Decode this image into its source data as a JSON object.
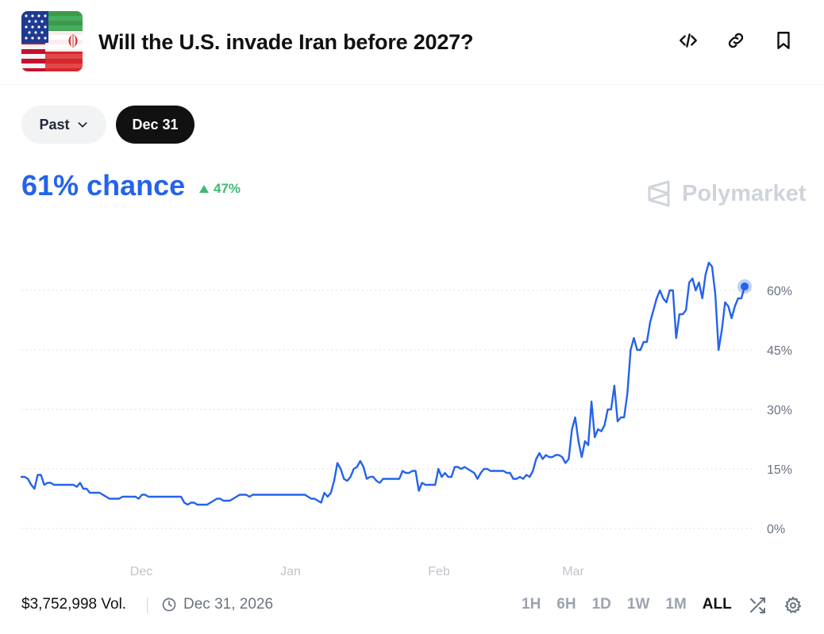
{
  "market": {
    "title": "Will the U.S. invade Iran before 2027?"
  },
  "header_icons": [
    "embed-code-icon",
    "link-icon",
    "bookmark-icon"
  ],
  "filters": {
    "past_label": "Past",
    "date_label": "Dec 31"
  },
  "summary": {
    "chance_text": "61% chance",
    "change_text": "47%",
    "brand": "Polymarket"
  },
  "colors": {
    "line": "#2563eb",
    "positive": "#3dbb72",
    "grid": "#d1d5db",
    "brand_gray": "#cfd4db"
  },
  "chart_data": {
    "type": "line",
    "series": [
      {
        "values": [
          13,
          13,
          12.5,
          11,
          10,
          13.5,
          13.5,
          11,
          11.5,
          11.5,
          11,
          11,
          11,
          11,
          11,
          11,
          11,
          10.5,
          11.5,
          10,
          10,
          9,
          9,
          9,
          9,
          8.5,
          8,
          7.5,
          7.5,
          7.5,
          7.5,
          8,
          8,
          8,
          8,
          8,
          7.5,
          8.5,
          8.5,
          8,
          8,
          8,
          8,
          8,
          8,
          8,
          8,
          8,
          8,
          8,
          6.5,
          6,
          6.5,
          6.5,
          6,
          6,
          6,
          6,
          6.5,
          7,
          7.5,
          7.5,
          7,
          7,
          7,
          7.5,
          8,
          8.5,
          8.5,
          8.5,
          8,
          8.5,
          8.5,
          8.5,
          8.5,
          8.5,
          8.5,
          8.5,
          8.5,
          8.5,
          8.5,
          8.5,
          8.5,
          8.5,
          8.5,
          8.5,
          8.5,
          8.5,
          8,
          7.5,
          7.5,
          7,
          6.5,
          9,
          8,
          9,
          12,
          16.5,
          15,
          12.5,
          12,
          13,
          15,
          15.5,
          17,
          15.5,
          12.5,
          13,
          13,
          12,
          11.5,
          12.5,
          12.5,
          12.5,
          12.5,
          12.5,
          12.5,
          14.5,
          14,
          14,
          14.5,
          14.5,
          9.5,
          11.5,
          11,
          11,
          11,
          11,
          15,
          13,
          14,
          13,
          13,
          15.5,
          15.5,
          15,
          15.5,
          15,
          14.5,
          14,
          12.5,
          14,
          15,
          15,
          14.5,
          14.5,
          14.5,
          14.5,
          14.5,
          14,
          14,
          12.5,
          12.5,
          13,
          12.5,
          13.5,
          13,
          14.5,
          17.5,
          19,
          17.5,
          18.5,
          18,
          18,
          18.5,
          18.5,
          18,
          16.5,
          17.5,
          25,
          28,
          22,
          18,
          22,
          21,
          32,
          23,
          25,
          24.5,
          26,
          30,
          30,
          36,
          27,
          28,
          28,
          34,
          45,
          48,
          45,
          45,
          47,
          47,
          52,
          55,
          58,
          60,
          58,
          57,
          60,
          60,
          48,
          54,
          54,
          55,
          62,
          63,
          60,
          62,
          58,
          64,
          67,
          66,
          59,
          45,
          50,
          57,
          56,
          53,
          56,
          58,
          58,
          61
        ]
      }
    ],
    "x_range": [
      "2025-11-13",
      "2026-03-28"
    ],
    "x_ticks": [
      "Dec",
      "Jan",
      "Feb",
      "Mar"
    ],
    "y_ticks": [
      "60%",
      "45%",
      "30%",
      "15%",
      "0%"
    ],
    "ylim": [
      0,
      60
    ],
    "grid": true,
    "axis_side": "right",
    "last_value": 61
  },
  "footer": {
    "volume": "$3,752,998 Vol.",
    "end_date": "Dec 31, 2026",
    "ranges": [
      "1H",
      "6H",
      "1D",
      "1W",
      "1M",
      "ALL"
    ],
    "active_range": "ALL"
  }
}
